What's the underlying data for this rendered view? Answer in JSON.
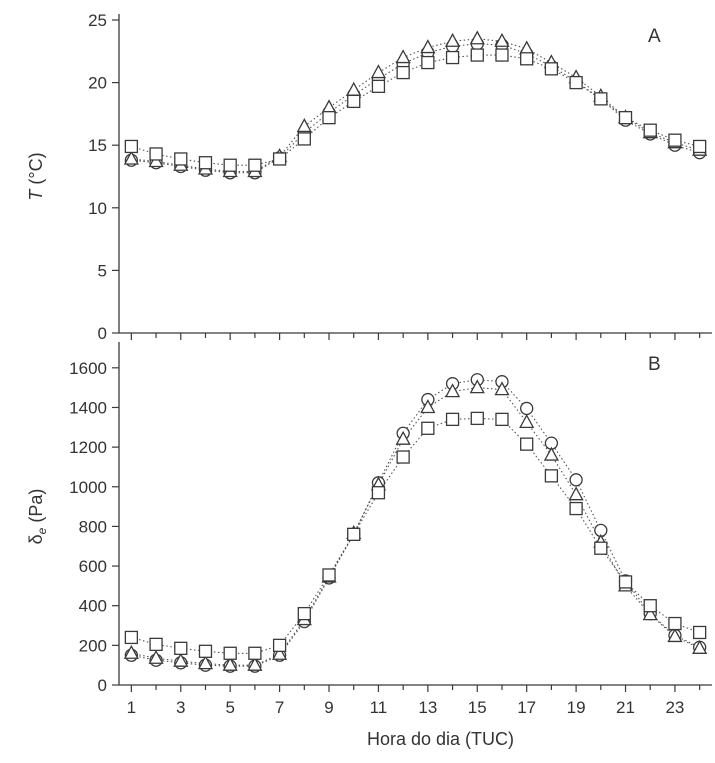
{
  "chart_data": [
    {
      "panel_label": "A",
      "type": "line",
      "ylabel_italic": "T",
      "ylabel_unit": " (°C)",
      "ylim": [
        0,
        25
      ],
      "yticks": [
        0,
        5,
        10,
        15,
        20,
        25
      ],
      "x": [
        1,
        2,
        3,
        4,
        5,
        6,
        7,
        8,
        9,
        10,
        11,
        12,
        13,
        14,
        15,
        16,
        17,
        18,
        19,
        20,
        21,
        22,
        23,
        24
      ],
      "series": [
        {
          "marker": "circle",
          "values": [
            13.8,
            13.6,
            13.3,
            13.0,
            12.8,
            12.8,
            14.0,
            16.0,
            17.6,
            19.0,
            20.3,
            21.5,
            22.4,
            22.9,
            23.1,
            23.0,
            22.3,
            21.3,
            20.1,
            18.7,
            17.0,
            15.9,
            15.0,
            14.4
          ]
        },
        {
          "marker": "triangle",
          "values": [
            13.9,
            13.7,
            13.4,
            13.1,
            12.9,
            12.9,
            14.1,
            16.5,
            18.0,
            19.4,
            20.8,
            22.0,
            22.8,
            23.3,
            23.5,
            23.3,
            22.7,
            21.6,
            20.4,
            18.9,
            17.2,
            16.0,
            15.2,
            14.6
          ]
        },
        {
          "marker": "square",
          "values": [
            14.9,
            14.3,
            13.9,
            13.6,
            13.4,
            13.4,
            13.9,
            15.5,
            17.2,
            18.5,
            19.7,
            20.8,
            21.6,
            22.0,
            22.2,
            22.2,
            21.9,
            21.1,
            20.0,
            18.7,
            17.2,
            16.2,
            15.4,
            14.9
          ]
        }
      ]
    },
    {
      "panel_label": "B",
      "type": "line",
      "ylabel_symbol": "δ",
      "ylabel_sub": "e",
      "ylabel_unit": " (Pa)",
      "ylim": [
        0,
        1700
      ],
      "yticks": [
        0,
        200,
        400,
        600,
        800,
        1000,
        1200,
        1400,
        1600
      ],
      "x": [
        1,
        2,
        3,
        4,
        5,
        6,
        7,
        8,
        9,
        10,
        11,
        12,
        13,
        14,
        15,
        16,
        17,
        18,
        19,
        20,
        21,
        22,
        23,
        24
      ],
      "xticks": [
        1,
        3,
        5,
        7,
        9,
        11,
        13,
        15,
        17,
        19,
        21,
        23
      ],
      "xlabel": "Hora do dia  (TUC)",
      "series": [
        {
          "marker": "circle",
          "values": [
            150,
            125,
            112,
            100,
            95,
            95,
            150,
            320,
            540,
            760,
            1020,
            1270,
            1440,
            1520,
            1540,
            1530,
            1395,
            1220,
            1035,
            780,
            525,
            360,
            250,
            190
          ]
        },
        {
          "marker": "triangle",
          "values": [
            160,
            135,
            120,
            108,
            100,
            100,
            155,
            330,
            545,
            765,
            1010,
            1240,
            1400,
            1480,
            1500,
            1490,
            1325,
            1160,
            960,
            720,
            500,
            355,
            245,
            185
          ]
        },
        {
          "marker": "square",
          "values": [
            240,
            205,
            185,
            170,
            160,
            160,
            200,
            360,
            555,
            760,
            970,
            1150,
            1295,
            1340,
            1345,
            1340,
            1215,
            1055,
            890,
            690,
            520,
            400,
            310,
            265
          ]
        }
      ]
    }
  ]
}
